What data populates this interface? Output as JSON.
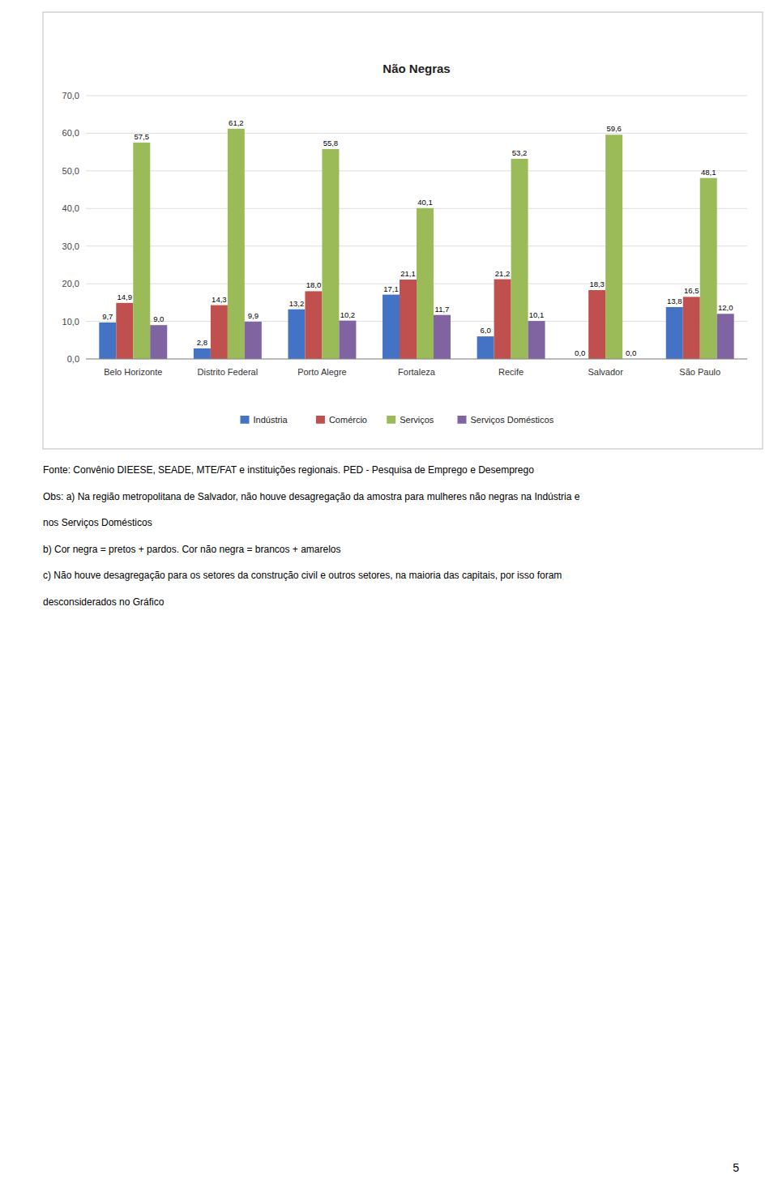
{
  "chart_data": {
    "type": "bar",
    "title": "Não Negras",
    "categories": [
      "Belo Horizonte",
      "Distrito Federal",
      "Porto Alegre",
      "Fortaleza",
      "Recife",
      "Salvador",
      "São Paulo"
    ],
    "series": [
      {
        "name": "Indústria",
        "color": "#4472C4",
        "values": [
          9.7,
          2.8,
          13.2,
          17.1,
          6.0,
          0.0,
          13.8
        ],
        "value_labels": [
          "9,7",
          "2,8",
          "13,2",
          "17,1",
          "6,0",
          "0,0",
          "13,8"
        ]
      },
      {
        "name": "Comércio",
        "color": "#C0504D",
        "values": [
          14.9,
          14.3,
          18.0,
          21.1,
          21.2,
          18.3,
          16.5
        ],
        "value_labels": [
          "14,9",
          "14,3",
          "18,0",
          "21,1",
          "21,2",
          "18,3",
          "16,5"
        ]
      },
      {
        "name": "Serviços",
        "color": "#9BBB59",
        "values": [
          57.5,
          61.2,
          55.8,
          40.1,
          53.2,
          59.6,
          48.1
        ],
        "value_labels": [
          "57,5",
          "61,2",
          "55,8",
          "40,1",
          "53,2",
          "59,6",
          "48,1"
        ]
      },
      {
        "name": "Serviços Domésticos",
        "color": "#8064A2",
        "values": [
          9.0,
          9.9,
          10.2,
          11.7,
          10.1,
          0.0,
          12.0
        ],
        "value_labels": [
          "9,0",
          "9,9",
          "10,2",
          "11,7",
          "10,1",
          "0,0",
          "12,0"
        ]
      }
    ],
    "ylim": [
      0,
      70
    ],
    "yticks": [
      {
        "value": 0,
        "label": "0,0"
      },
      {
        "value": 10,
        "label": "10,0"
      },
      {
        "value": 20,
        "label": "20,0"
      },
      {
        "value": 30,
        "label": "30,0"
      },
      {
        "value": 40,
        "label": "40,0"
      },
      {
        "value": 50,
        "label": "50,0"
      },
      {
        "value": 60,
        "label": "60,0"
      },
      {
        "value": 70,
        "label": "70,0"
      }
    ],
    "grid": true,
    "data_labels": true,
    "legend": "bottom",
    "annotations": [
      "Fonte: Convênio DIEESE, SEADE, MTE/FAT e instituições regionais. PED - Pesquisa de Emprego e Desemprego",
      "Obs: a) Na região metropolitana de Salvador, não houve desagregação da amostra para mulheres não negras na Indústria e",
      "nos Serviços Domésticos",
      "b) Cor negra = pretos + pardos. Cor não negra = brancos + amarelos",
      "c) Não houve desagregação para os setores da construção civil e outros setores, na maioria das capitais, por isso foram",
      "desconsiderados no Gráfico"
    ],
    "page_number": "5"
  }
}
